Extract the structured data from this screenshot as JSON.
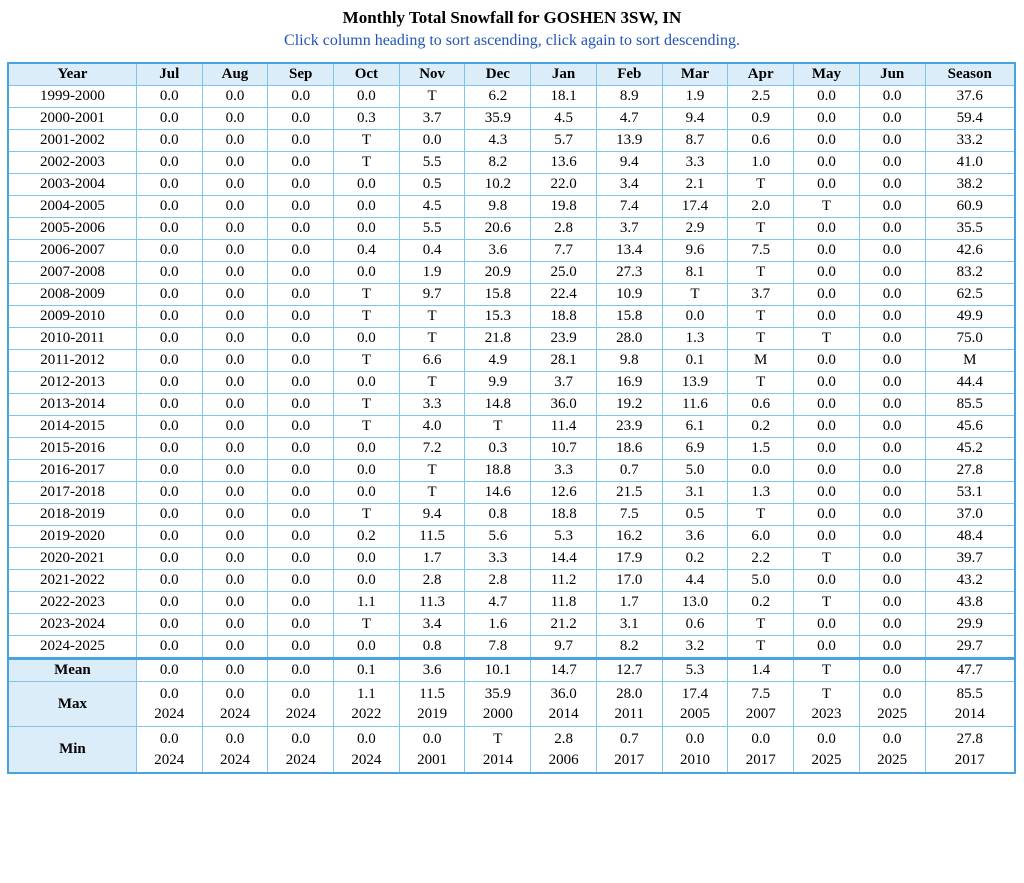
{
  "title": "Monthly Total Snowfall for GOSHEN 3SW, IN",
  "subtitle": "Click column heading to sort ascending, click again to sort descending.",
  "colors": {
    "grid_border": "#7fc3ef",
    "outer_border": "#46a4de",
    "header_bg": "#dcedfa",
    "subtitle_text": "#2353b5"
  },
  "table": {
    "columns": [
      "Year",
      "Jul",
      "Aug",
      "Sep",
      "Oct",
      "Nov",
      "Dec",
      "Jan",
      "Feb",
      "Mar",
      "Apr",
      "May",
      "Jun",
      "Season"
    ],
    "rows": [
      [
        "1999-2000",
        "0.0",
        "0.0",
        "0.0",
        "0.0",
        "T",
        "6.2",
        "18.1",
        "8.9",
        "1.9",
        "2.5",
        "0.0",
        "0.0",
        "37.6"
      ],
      [
        "2000-2001",
        "0.0",
        "0.0",
        "0.0",
        "0.3",
        "3.7",
        "35.9",
        "4.5",
        "4.7",
        "9.4",
        "0.9",
        "0.0",
        "0.0",
        "59.4"
      ],
      [
        "2001-2002",
        "0.0",
        "0.0",
        "0.0",
        "T",
        "0.0",
        "4.3",
        "5.7",
        "13.9",
        "8.7",
        "0.6",
        "0.0",
        "0.0",
        "33.2"
      ],
      [
        "2002-2003",
        "0.0",
        "0.0",
        "0.0",
        "T",
        "5.5",
        "8.2",
        "13.6",
        "9.4",
        "3.3",
        "1.0",
        "0.0",
        "0.0",
        "41.0"
      ],
      [
        "2003-2004",
        "0.0",
        "0.0",
        "0.0",
        "0.0",
        "0.5",
        "10.2",
        "22.0",
        "3.4",
        "2.1",
        "T",
        "0.0",
        "0.0",
        "38.2"
      ],
      [
        "2004-2005",
        "0.0",
        "0.0",
        "0.0",
        "0.0",
        "4.5",
        "9.8",
        "19.8",
        "7.4",
        "17.4",
        "2.0",
        "T",
        "0.0",
        "60.9"
      ],
      [
        "2005-2006",
        "0.0",
        "0.0",
        "0.0",
        "0.0",
        "5.5",
        "20.6",
        "2.8",
        "3.7",
        "2.9",
        "T",
        "0.0",
        "0.0",
        "35.5"
      ],
      [
        "2006-2007",
        "0.0",
        "0.0",
        "0.0",
        "0.4",
        "0.4",
        "3.6",
        "7.7",
        "13.4",
        "9.6",
        "7.5",
        "0.0",
        "0.0",
        "42.6"
      ],
      [
        "2007-2008",
        "0.0",
        "0.0",
        "0.0",
        "0.0",
        "1.9",
        "20.9",
        "25.0",
        "27.3",
        "8.1",
        "T",
        "0.0",
        "0.0",
        "83.2"
      ],
      [
        "2008-2009",
        "0.0",
        "0.0",
        "0.0",
        "T",
        "9.7",
        "15.8",
        "22.4",
        "10.9",
        "T",
        "3.7",
        "0.0",
        "0.0",
        "62.5"
      ],
      [
        "2009-2010",
        "0.0",
        "0.0",
        "0.0",
        "T",
        "T",
        "15.3",
        "18.8",
        "15.8",
        "0.0",
        "T",
        "0.0",
        "0.0",
        "49.9"
      ],
      [
        "2010-2011",
        "0.0",
        "0.0",
        "0.0",
        "0.0",
        "T",
        "21.8",
        "23.9",
        "28.0",
        "1.3",
        "T",
        "T",
        "0.0",
        "75.0"
      ],
      [
        "2011-2012",
        "0.0",
        "0.0",
        "0.0",
        "T",
        "6.6",
        "4.9",
        "28.1",
        "9.8",
        "0.1",
        "M",
        "0.0",
        "0.0",
        "M"
      ],
      [
        "2012-2013",
        "0.0",
        "0.0",
        "0.0",
        "0.0",
        "T",
        "9.9",
        "3.7",
        "16.9",
        "13.9",
        "T",
        "0.0",
        "0.0",
        "44.4"
      ],
      [
        "2013-2014",
        "0.0",
        "0.0",
        "0.0",
        "T",
        "3.3",
        "14.8",
        "36.0",
        "19.2",
        "11.6",
        "0.6",
        "0.0",
        "0.0",
        "85.5"
      ],
      [
        "2014-2015",
        "0.0",
        "0.0",
        "0.0",
        "T",
        "4.0",
        "T",
        "11.4",
        "23.9",
        "6.1",
        "0.2",
        "0.0",
        "0.0",
        "45.6"
      ],
      [
        "2015-2016",
        "0.0",
        "0.0",
        "0.0",
        "0.0",
        "7.2",
        "0.3",
        "10.7",
        "18.6",
        "6.9",
        "1.5",
        "0.0",
        "0.0",
        "45.2"
      ],
      [
        "2016-2017",
        "0.0",
        "0.0",
        "0.0",
        "0.0",
        "T",
        "18.8",
        "3.3",
        "0.7",
        "5.0",
        "0.0",
        "0.0",
        "0.0",
        "27.8"
      ],
      [
        "2017-2018",
        "0.0",
        "0.0",
        "0.0",
        "0.0",
        "T",
        "14.6",
        "12.6",
        "21.5",
        "3.1",
        "1.3",
        "0.0",
        "0.0",
        "53.1"
      ],
      [
        "2018-2019",
        "0.0",
        "0.0",
        "0.0",
        "T",
        "9.4",
        "0.8",
        "18.8",
        "7.5",
        "0.5",
        "T",
        "0.0",
        "0.0",
        "37.0"
      ],
      [
        "2019-2020",
        "0.0",
        "0.0",
        "0.0",
        "0.2",
        "11.5",
        "5.6",
        "5.3",
        "16.2",
        "3.6",
        "6.0",
        "0.0",
        "0.0",
        "48.4"
      ],
      [
        "2020-2021",
        "0.0",
        "0.0",
        "0.0",
        "0.0",
        "1.7",
        "3.3",
        "14.4",
        "17.9",
        "0.2",
        "2.2",
        "T",
        "0.0",
        "39.7"
      ],
      [
        "2021-2022",
        "0.0",
        "0.0",
        "0.0",
        "0.0",
        "2.8",
        "2.8",
        "11.2",
        "17.0",
        "4.4",
        "5.0",
        "0.0",
        "0.0",
        "43.2"
      ],
      [
        "2022-2023",
        "0.0",
        "0.0",
        "0.0",
        "1.1",
        "11.3",
        "4.7",
        "11.8",
        "1.7",
        "13.0",
        "0.2",
        "T",
        "0.0",
        "43.8"
      ],
      [
        "2023-2024",
        "0.0",
        "0.0",
        "0.0",
        "T",
        "3.4",
        "1.6",
        "21.2",
        "3.1",
        "0.6",
        "T",
        "0.0",
        "0.0",
        "29.9"
      ],
      [
        "2024-2025",
        "0.0",
        "0.0",
        "0.0",
        "0.0",
        "0.8",
        "7.8",
        "9.7",
        "8.2",
        "3.2",
        "T",
        "0.0",
        "0.0",
        "29.7"
      ]
    ],
    "summary": [
      {
        "label": "Mean",
        "values": [
          "0.0",
          "0.0",
          "0.0",
          "0.1",
          "3.6",
          "10.1",
          "14.7",
          "12.7",
          "5.3",
          "1.4",
          "T",
          "0.0",
          "47.7"
        ]
      },
      {
        "label": "Max",
        "values": [
          "0.0",
          "0.0",
          "0.0",
          "1.1",
          "11.5",
          "35.9",
          "36.0",
          "28.0",
          "17.4",
          "7.5",
          "T",
          "0.0",
          "85.5"
        ],
        "years": [
          "2024",
          "2024",
          "2024",
          "2022",
          "2019",
          "2000",
          "2014",
          "2011",
          "2005",
          "2007",
          "2023",
          "2025",
          "2014"
        ]
      },
      {
        "label": "Min",
        "values": [
          "0.0",
          "0.0",
          "0.0",
          "0.0",
          "0.0",
          "T",
          "2.8",
          "0.7",
          "0.0",
          "0.0",
          "0.0",
          "0.0",
          "27.8"
        ],
        "years": [
          "2024",
          "2024",
          "2024",
          "2024",
          "2001",
          "2014",
          "2006",
          "2017",
          "2010",
          "2017",
          "2025",
          "2025",
          "2017"
        ]
      }
    ]
  }
}
